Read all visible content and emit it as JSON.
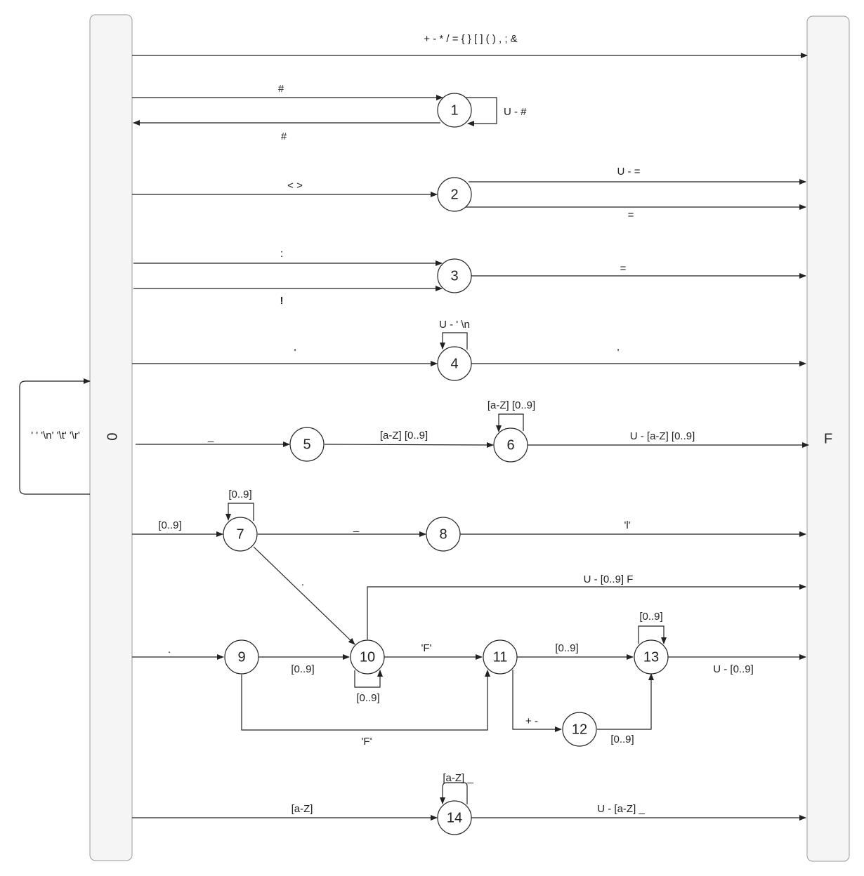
{
  "diagram": {
    "start_state": "0",
    "final_state": "F",
    "states": [
      "1",
      "2",
      "3",
      "4",
      "5",
      "6",
      "7",
      "8",
      "9",
      "10",
      "11",
      "12",
      "13",
      "14"
    ],
    "transitions": [
      {
        "id": "e-0-F-ops",
        "from": "0",
        "to": "F",
        "label": "+ - * / = { } [ ] ( ) , ; &"
      },
      {
        "id": "e-0-1",
        "from": "0",
        "to": "1",
        "label": "#"
      },
      {
        "id": "e-1-1",
        "from": "1",
        "to": "1",
        "label": "U - #"
      },
      {
        "id": "e-1-0",
        "from": "1",
        "to": "0",
        "label": "#"
      },
      {
        "id": "e-0-2",
        "from": "0",
        "to": "2",
        "label": "< >"
      },
      {
        "id": "e-2-F-a",
        "from": "2",
        "to": "F",
        "label": "U - ="
      },
      {
        "id": "e-2-F-b",
        "from": "2",
        "to": "F",
        "label": "="
      },
      {
        "id": "e-0-3-a",
        "from": "0",
        "to": "3",
        "label": ":"
      },
      {
        "id": "e-0-3-b",
        "from": "0",
        "to": "3",
        "label": "!"
      },
      {
        "id": "e-3-F",
        "from": "3",
        "to": "F",
        "label": "="
      },
      {
        "id": "e-0-4",
        "from": "0",
        "to": "4",
        "label": "'"
      },
      {
        "id": "e-4-4",
        "from": "4",
        "to": "4",
        "label": "U - ' \\n"
      },
      {
        "id": "e-4-F",
        "from": "4",
        "to": "F",
        "label": "'"
      },
      {
        "id": "e-0-0",
        "from": "0",
        "to": "0",
        "label": "' ' '\\n' '\\t' '\\r'"
      },
      {
        "id": "e-0-5",
        "from": "0",
        "to": "5",
        "label": "_"
      },
      {
        "id": "e-5-6",
        "from": "5",
        "to": "6",
        "label": "[a-Z] [0..9]"
      },
      {
        "id": "e-6-6",
        "from": "6",
        "to": "6",
        "label": "[a-Z] [0..9]"
      },
      {
        "id": "e-6-F",
        "from": "6",
        "to": "F",
        "label": "U - [a-Z] [0..9]"
      },
      {
        "id": "e-0-7",
        "from": "0",
        "to": "7",
        "label": "[0..9]"
      },
      {
        "id": "e-7-7",
        "from": "7",
        "to": "7",
        "label": "[0..9]"
      },
      {
        "id": "e-7-8",
        "from": "7",
        "to": "8",
        "label": "_"
      },
      {
        "id": "e-8-F",
        "from": "8",
        "to": "F",
        "label": "'l'"
      },
      {
        "id": "e-7-10",
        "from": "7",
        "to": "10",
        "label": "."
      },
      {
        "id": "e-10-F",
        "from": "10",
        "to": "F",
        "label": "U - [0..9] F"
      },
      {
        "id": "e-0-9",
        "from": "0",
        "to": "9",
        "label": "."
      },
      {
        "id": "e-9-10",
        "from": "9",
        "to": "10",
        "label": "[0..9]"
      },
      {
        "id": "e-10-10",
        "from": "10",
        "to": "10",
        "label": "[0..9]"
      },
      {
        "id": "e-10-11",
        "from": "10",
        "to": "11",
        "label": "'F'"
      },
      {
        "id": "e-9-11",
        "from": "9",
        "to": "11",
        "label": "'F'"
      },
      {
        "id": "e-11-13",
        "from": "11",
        "to": "13",
        "label": "[0..9]"
      },
      {
        "id": "e-13-13",
        "from": "13",
        "to": "13",
        "label": "[0..9]"
      },
      {
        "id": "e-13-F",
        "from": "13",
        "to": "F",
        "label": "U - [0..9]"
      },
      {
        "id": "e-11-12",
        "from": "11",
        "to": "12",
        "label": "+ -"
      },
      {
        "id": "e-12-13",
        "from": "12",
        "to": "13",
        "label": "[0..9]"
      },
      {
        "id": "e-0-14",
        "from": "0",
        "to": "14",
        "label": "[a-Z]"
      },
      {
        "id": "e-14-14",
        "from": "14",
        "to": "14",
        "label": "[a-Z] _"
      },
      {
        "id": "e-14-F",
        "from": "14",
        "to": "F",
        "label": "U - [a-Z] _"
      }
    ]
  }
}
